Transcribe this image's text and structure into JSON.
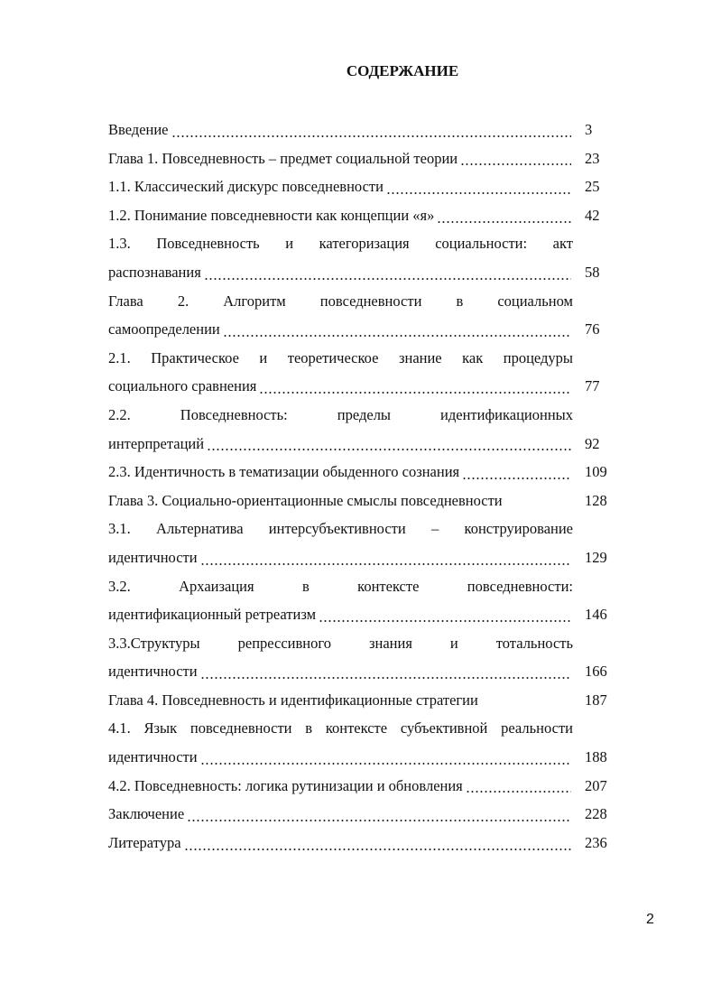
{
  "title": "СОДЕРЖАНИЕ",
  "entries": [
    {
      "lines": [
        "Введение"
      ],
      "page": 3
    },
    {
      "lines": [
        "Глава 1. Повседневность – предмет социальной теории"
      ],
      "page": 23
    },
    {
      "lines": [
        "1.1. Классический дискурс повседневности"
      ],
      "page": 25
    },
    {
      "lines": [
        "1.2. Понимание повседневности как концепции «я»"
      ],
      "page": 42
    },
    {
      "lines": [
        "1.3. Повседневность и категоризация социальности: акт",
        "распознавания"
      ],
      "page": 58
    },
    {
      "lines": [
        "Глава 2. Алгоритм повседневности в социальном",
        "самоопределении"
      ],
      "page": 76
    },
    {
      "lines": [
        "2.1. Практическое и теоретическое знание как процедуры",
        "социального сравнения"
      ],
      "page": 77
    },
    {
      "lines": [
        "2.2. Повседневность: пределы идентификационных",
        "интерпретаций"
      ],
      "page": 92
    },
    {
      "lines": [
        "2.3. Идентичность в тематизации обыденного сознания"
      ],
      "page": 109
    },
    {
      "lines": [
        "Глава 3. Социально-ориентационные смыслы повседневности"
      ],
      "page": 128
    },
    {
      "lines": [
        "3.1. Альтернатива интерсубъективности – конструирование",
        "идентичности"
      ],
      "page": 129
    },
    {
      "lines": [
        "3.2. Архаизация в контексте повседневности:",
        "идентификационный ретреатизм"
      ],
      "page": 146
    },
    {
      "lines": [
        "3.3.Структуры репрессивного знания и тотальность",
        "идентичности"
      ],
      "page": 166
    },
    {
      "lines": [
        "Глава 4. Повседневность и идентификационные стратегии"
      ],
      "page": 187
    },
    {
      "lines": [
        "4.1. Язык повседневности в контексте субъективной реальности",
        "идентичности"
      ],
      "page": 188
    },
    {
      "lines": [
        "4.2. Повседневность: логика рутинизации и обновления"
      ],
      "page": 207
    },
    {
      "lines": [
        "Заключение"
      ],
      "page": 228
    },
    {
      "lines": [
        "Литература"
      ],
      "page": 236
    }
  ],
  "page_number": 2
}
